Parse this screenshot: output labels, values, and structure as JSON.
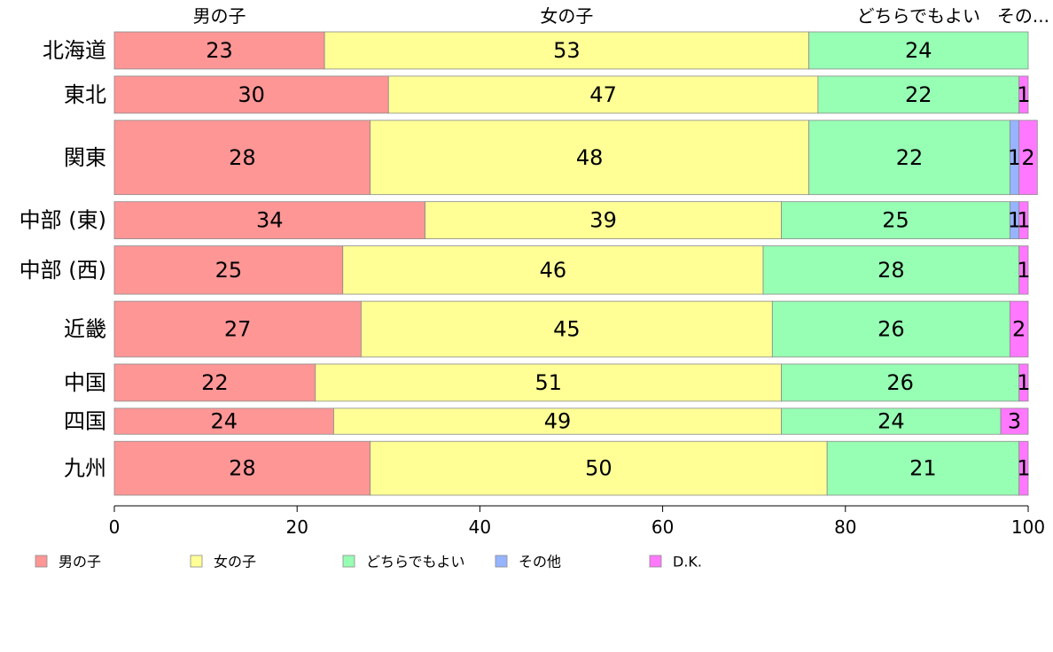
{
  "chart_data": {
    "type": "bar",
    "orientation": "horizontal",
    "stacked": true,
    "categories": [
      "北海道",
      "東北",
      "関東",
      "中部 (東)",
      "中部 (西)",
      "近畿",
      "中国",
      "四国",
      "九州"
    ],
    "series": [
      {
        "name": "男の子",
        "color": "#ff9696",
        "values": [
          23,
          30,
          28,
          34,
          25,
          27,
          22,
          24,
          28
        ]
      },
      {
        "name": "女の子",
        "color": "#ffff96",
        "values": [
          53,
          47,
          48,
          39,
          46,
          45,
          51,
          49,
          50
        ]
      },
      {
        "name": "どちらでもよい",
        "color": "#96ffb4",
        "values": [
          24,
          22,
          22,
          25,
          28,
          26,
          26,
          24,
          21
        ]
      },
      {
        "name": "その他",
        "color": "#96b4ff",
        "values": [
          0,
          0,
          1,
          1,
          0,
          0,
          0,
          0,
          0
        ]
      },
      {
        "name": "D.K.",
        "color": "#ff78ff",
        "values": [
          0,
          1,
          2,
          1,
          1,
          2,
          1,
          3,
          1
        ]
      }
    ],
    "row_weights": [
      1,
      1,
      2,
      1,
      1.3,
      1.5,
      1,
      0.7,
      1.45
    ],
    "top_labels": [
      "男の子",
      "女の子",
      "どちらでもよい",
      "その..."
    ],
    "x_ticks": [
      "0",
      "20",
      "40",
      "60",
      "80",
      "100"
    ],
    "xlim": [
      0,
      100
    ],
    "legend_position": "bottom-left",
    "title": "",
    "xlabel": "",
    "ylabel": "",
    "grid": false
  }
}
